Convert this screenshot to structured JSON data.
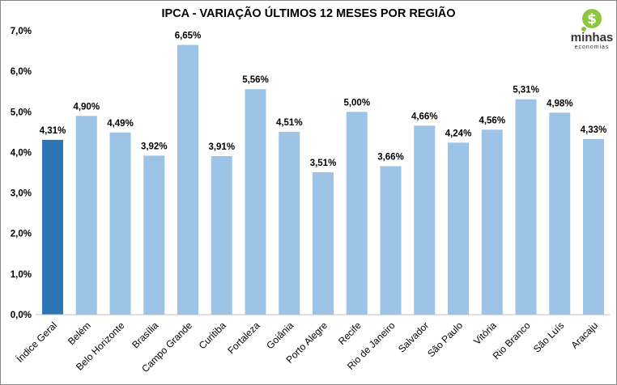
{
  "chart_data": {
    "type": "bar",
    "title": "IPCA - VARIAÇÃO ÚLTIMOS 12 MESES POR REGIÃO",
    "xlabel": "",
    "ylabel": "",
    "ylim": [
      0,
      7
    ],
    "yticks": [
      "0,0%",
      "1,0%",
      "2,0%",
      "3,0%",
      "4,0%",
      "5,0%",
      "6,0%",
      "7,0%"
    ],
    "grid": false,
    "categories": [
      "Índice Geral",
      "Belém",
      "Belo Horizonte",
      "Brasília",
      "Campo Grande",
      "Curitiba",
      "Fortaleza",
      "Goiânia",
      "Porto Alegre",
      "Recife",
      "Rio de Janeiro",
      "Salvador",
      "São Paulo",
      "Vitória",
      "Rio Branco",
      "São Luís",
      "Aracaju"
    ],
    "values": [
      4.31,
      4.9,
      4.49,
      3.92,
      6.65,
      3.91,
      5.56,
      4.51,
      3.51,
      5.0,
      3.66,
      4.66,
      4.24,
      4.56,
      5.31,
      4.98,
      4.33
    ],
    "data_labels": [
      "4,31%",
      "4,90%",
      "4,49%",
      "3,92%",
      "6,65%",
      "3,91%",
      "5,56%",
      "4,51%",
      "3,51%",
      "5,00%",
      "3,66%",
      "4,66%",
      "4,24%",
      "4,56%",
      "5,31%",
      "4,98%",
      "4,33%"
    ],
    "colors": {
      "highlight": "#2E75B6",
      "bar": "#9DC3E6"
    }
  },
  "logo": {
    "text": "minhas",
    "subtext": "economias",
    "color": "#8DC63F"
  }
}
